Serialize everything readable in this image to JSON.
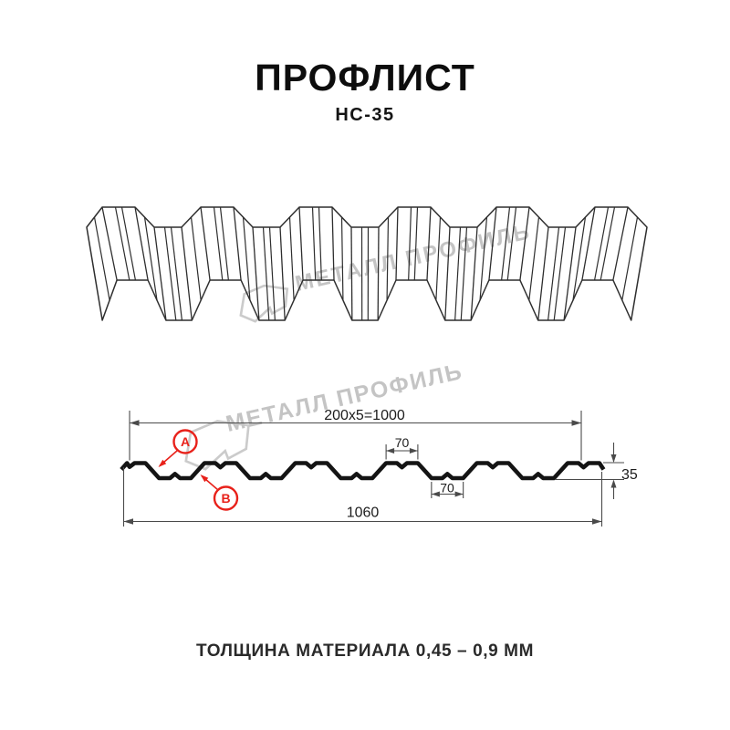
{
  "header": {
    "title": "ПРОФЛИСТ",
    "subtitle": "НС-35"
  },
  "watermark": {
    "brand_text": "МЕТАЛЛ ПРОФИЛЬ"
  },
  "section": {
    "dim_top": "200x5=1000",
    "dim_crest_width": "70",
    "dim_valley_width": "70",
    "dim_height": "35",
    "dim_overall_width": "1060",
    "marker_a": "A",
    "marker_b": "B"
  },
  "footer": {
    "thickness_note": "ТОЛЩИНА МАТЕРИАЛА 0,45 – 0,9 ММ"
  },
  "colors": {
    "ink": "#141414",
    "thin_line": "#4a4a4a",
    "accent_red": "#e8211a",
    "watermark_gray": "#c4c4c4"
  }
}
